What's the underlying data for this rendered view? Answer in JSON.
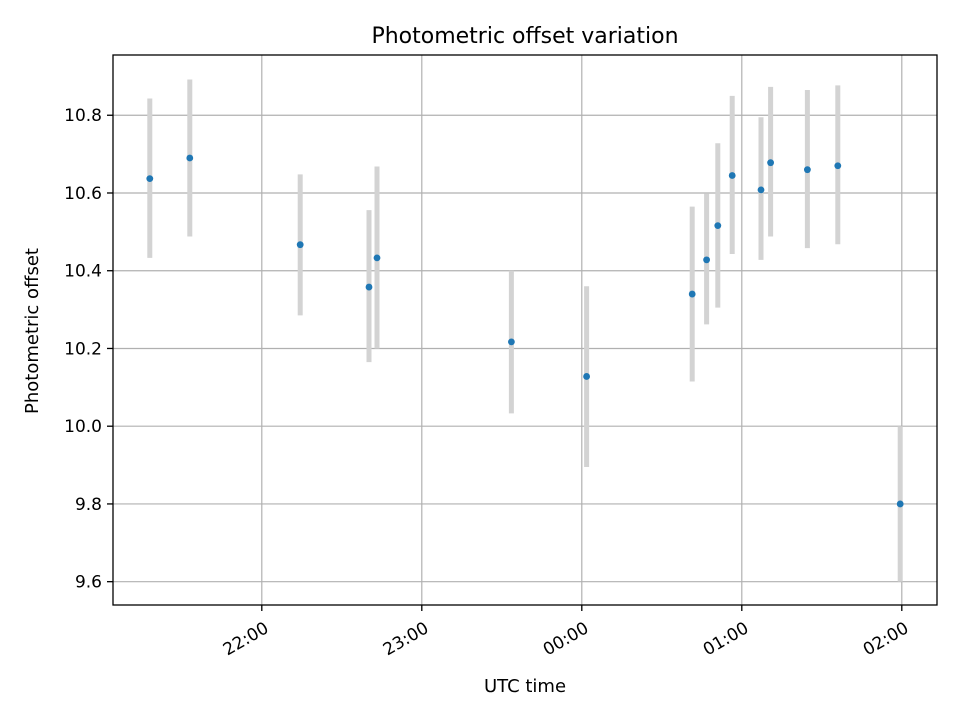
{
  "chart_data": {
    "type": "scatter",
    "title": "Photometric offset variation",
    "xlabel": "UTC time",
    "ylabel": "Photometric offset",
    "x_unit": "UTC time (hours, continuous across midnight: 24 = 00:00, 25 = 01:00)",
    "xlim": [
      21.07,
      26.22
    ],
    "ylim": [
      9.54,
      10.955
    ],
    "grid": true,
    "x_ticks": [
      {
        "value": 22,
        "label": "22:00"
      },
      {
        "value": 23,
        "label": "23:00"
      },
      {
        "value": 24,
        "label": "00:00"
      },
      {
        "value": 25,
        "label": "01:00"
      },
      {
        "value": 26,
        "label": "02:00"
      }
    ],
    "y_ticks": [
      {
        "value": 9.6,
        "label": "9.6"
      },
      {
        "value": 9.8,
        "label": "9.8"
      },
      {
        "value": 10.0,
        "label": "10.0"
      },
      {
        "value": 10.2,
        "label": "10.2"
      },
      {
        "value": 10.4,
        "label": "10.4"
      },
      {
        "value": 10.6,
        "label": "10.6"
      },
      {
        "value": 10.8,
        "label": "10.8"
      }
    ],
    "series": [
      {
        "marker_color": "#1f77b4",
        "errorbar_color": "#d3d3d3",
        "points": [
          {
            "x": 21.3,
            "y": 10.637,
            "ylow": 10.433,
            "yhigh": 10.843
          },
          {
            "x": 21.55,
            "y": 10.69,
            "ylow": 10.488,
            "yhigh": 10.892
          },
          {
            "x": 22.24,
            "y": 10.467,
            "ylow": 10.285,
            "yhigh": 10.648
          },
          {
            "x": 22.67,
            "y": 10.358,
            "ylow": 10.165,
            "yhigh": 10.556
          },
          {
            "x": 22.72,
            "y": 10.433,
            "ylow": 10.2,
            "yhigh": 10.668
          },
          {
            "x": 23.56,
            "y": 10.217,
            "ylow": 10.033,
            "yhigh": 10.4
          },
          {
            "x": 24.03,
            "y": 10.128,
            "ylow": 9.895,
            "yhigh": 10.36
          },
          {
            "x": 24.69,
            "y": 10.34,
            "ylow": 10.115,
            "yhigh": 10.565
          },
          {
            "x": 24.78,
            "y": 10.428,
            "ylow": 10.262,
            "yhigh": 10.598
          },
          {
            "x": 24.85,
            "y": 10.516,
            "ylow": 10.305,
            "yhigh": 10.728
          },
          {
            "x": 24.94,
            "y": 10.645,
            "ylow": 10.443,
            "yhigh": 10.85
          },
          {
            "x": 25.12,
            "y": 10.608,
            "ylow": 10.428,
            "yhigh": 10.795
          },
          {
            "x": 25.18,
            "y": 10.678,
            "ylow": 10.488,
            "yhigh": 10.873
          },
          {
            "x": 25.41,
            "y": 10.66,
            "ylow": 10.458,
            "yhigh": 10.865
          },
          {
            "x": 25.6,
            "y": 10.67,
            "ylow": 10.468,
            "yhigh": 10.877
          },
          {
            "x": 25.99,
            "y": 9.8,
            "ylow": 9.6,
            "yhigh": 10.0
          }
        ]
      }
    ]
  }
}
